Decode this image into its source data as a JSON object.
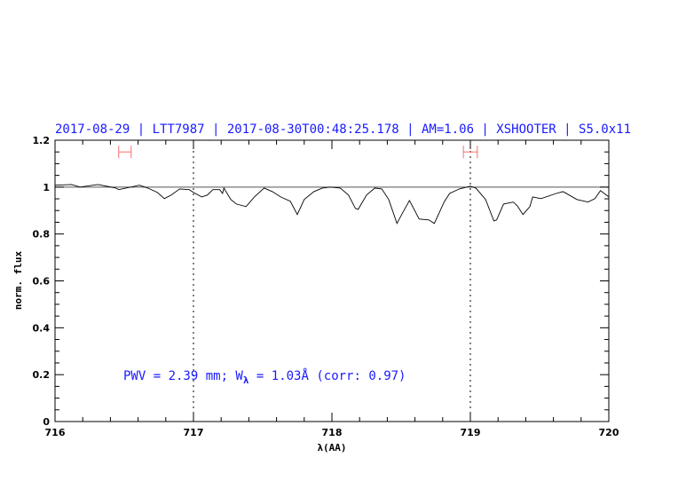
{
  "chart_data": {
    "type": "line",
    "title": "2017-08-29 | LTT7987 | 2017-08-30T00:48:25.178 | AM=1.06 | XSHOOTER | S5.0x11",
    "xlabel": "λ(AA)",
    "ylabel": "norm. flux",
    "xlim": [
      716,
      720
    ],
    "ylim": [
      0,
      1.2
    ],
    "x_ticks": [
      "716",
      "717",
      "718",
      "719",
      "720"
    ],
    "y_ticks": [
      "0",
      "0.2",
      "0.4",
      "0.6",
      "0.8",
      "1",
      "1.2"
    ],
    "grid": false,
    "reference_line": {
      "y": 1,
      "color": "#ff6b6b"
    },
    "vertical_dotted_lines": [
      717,
      719
    ],
    "range_markers": [
      {
        "x_start": 716.46,
        "x_end": 716.55,
        "y": 1.15,
        "color": "#ff6b6b"
      },
      {
        "x_start": 718.95,
        "x_end": 719.05,
        "y": 1.15,
        "color": "#ff6b6b"
      }
    ],
    "annotation": {
      "pwv": "PWV = 2.39 mm; W",
      "sub": "λ",
      "rest": " = 1.03Å (corr: 0.97)"
    },
    "series": [
      {
        "color": "#000000",
        "x": [
          716.0,
          716.12,
          716.18,
          716.31,
          716.44,
          716.46,
          716.61,
          716.67,
          716.74,
          716.79,
          716.84,
          716.9,
          716.97,
          717.0,
          717.06,
          717.1,
          717.14,
          717.19,
          717.21,
          717.22,
          717.27,
          717.31,
          717.38,
          717.44,
          717.51,
          717.57,
          717.63,
          717.7,
          717.75,
          717.8,
          717.87,
          717.93,
          717.99,
          718.06,
          718.12,
          718.17,
          718.19,
          718.25,
          718.31,
          718.36,
          718.41,
          718.47,
          718.51,
          718.56,
          718.63,
          718.7,
          718.74,
          718.81,
          718.85,
          718.92,
          719.0,
          719.04,
          719.11,
          719.17,
          719.19,
          719.24,
          719.31,
          719.34,
          719.38,
          719.43,
          719.45,
          719.51,
          719.62,
          719.67,
          719.77,
          719.85,
          719.9,
          719.94,
          720.0
        ],
        "y": [
          1.008,
          1.011,
          1.0,
          1.011,
          0.996,
          0.989,
          1.008,
          0.996,
          0.977,
          0.951,
          0.966,
          0.992,
          0.989,
          0.977,
          0.958,
          0.966,
          0.989,
          0.989,
          0.973,
          0.996,
          0.947,
          0.928,
          0.917,
          0.958,
          0.996,
          0.981,
          0.958,
          0.939,
          0.883,
          0.947,
          0.981,
          0.996,
          1.0,
          0.996,
          0.966,
          0.909,
          0.905,
          0.966,
          0.996,
          0.992,
          0.947,
          0.845,
          0.89,
          0.943,
          0.864,
          0.86,
          0.845,
          0.936,
          0.973,
          0.992,
          1.004,
          0.996,
          0.947,
          0.856,
          0.86,
          0.928,
          0.936,
          0.92,
          0.883,
          0.917,
          0.958,
          0.951,
          0.973,
          0.981,
          0.947,
          0.936,
          0.951,
          0.985,
          0.958
        ]
      }
    ]
  }
}
